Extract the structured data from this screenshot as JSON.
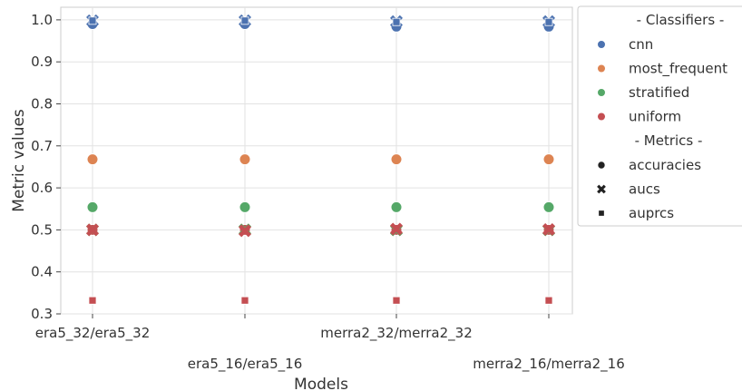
{
  "chart_data": {
    "type": "scatter",
    "xlabel": "Models",
    "ylabel": "Metric values",
    "categories": [
      "era5_32/era5_32",
      "era5_16/era5_16",
      "merra2_32/merra2_32",
      "merra2_16/merra2_16"
    ],
    "ylim": [
      0.3,
      1.03
    ],
    "yticks": [
      0.3,
      0.4,
      0.5,
      0.6,
      0.7,
      0.8,
      0.9,
      1.0
    ],
    "ytick_labels": [
      "0.3",
      "0.4",
      "0.5",
      "0.6",
      "0.7",
      "0.8",
      "0.9",
      "1.0"
    ],
    "grid": true,
    "legend_position": "outside-right",
    "legend": {
      "classifiers_header": "- Classifiers -",
      "metrics_header": "- Metrics -",
      "classifiers": [
        {
          "name": "cnn",
          "color": "#4c72b0"
        },
        {
          "name": "most_frequent",
          "color": "#dd8452"
        },
        {
          "name": "stratified",
          "color": "#55a868"
        },
        {
          "name": "uniform",
          "color": "#c44e52"
        }
      ],
      "metrics": [
        {
          "name": "accuracies",
          "marker": "circle"
        },
        {
          "name": "aucs",
          "marker": "x"
        },
        {
          "name": "auprcs",
          "marker": "square"
        }
      ]
    },
    "series": [
      {
        "classifier": "cnn",
        "metric": "accuracies",
        "values": [
          0.99,
          0.99,
          0.984,
          0.984
        ]
      },
      {
        "classifier": "cnn",
        "metric": "aucs",
        "values": [
          0.998,
          0.998,
          0.996,
          0.996
        ]
      },
      {
        "classifier": "cnn",
        "metric": "auprcs",
        "values": [
          0.998,
          0.998,
          0.995,
          0.995
        ]
      },
      {
        "classifier": "most_frequent",
        "metric": "accuracies",
        "values": [
          0.668,
          0.668,
          0.668,
          0.668
        ]
      },
      {
        "classifier": "most_frequent",
        "metric": "aucs",
        "values": [
          0.5,
          0.5,
          0.5,
          0.5
        ]
      },
      {
        "classifier": "most_frequent",
        "metric": "auprcs",
        "values": [
          0.332,
          0.332,
          0.332,
          0.332
        ]
      },
      {
        "classifier": "stratified",
        "metric": "accuracies",
        "values": [
          0.554,
          0.554,
          0.554,
          0.554
        ]
      },
      {
        "classifier": "stratified",
        "metric": "aucs",
        "values": [
          0.5,
          0.5,
          0.5,
          0.5
        ]
      },
      {
        "classifier": "stratified",
        "metric": "auprcs",
        "values": [
          0.332,
          0.332,
          0.332,
          0.332
        ]
      },
      {
        "classifier": "uniform",
        "metric": "accuracies",
        "values": [
          0.5,
          0.5,
          0.5,
          0.5
        ]
      },
      {
        "classifier": "uniform",
        "metric": "aucs",
        "values": [
          0.5,
          0.498,
          0.502,
          0.501
        ]
      },
      {
        "classifier": "uniform",
        "metric": "auprcs",
        "values": [
          0.332,
          0.332,
          0.332,
          0.332
        ]
      }
    ]
  }
}
